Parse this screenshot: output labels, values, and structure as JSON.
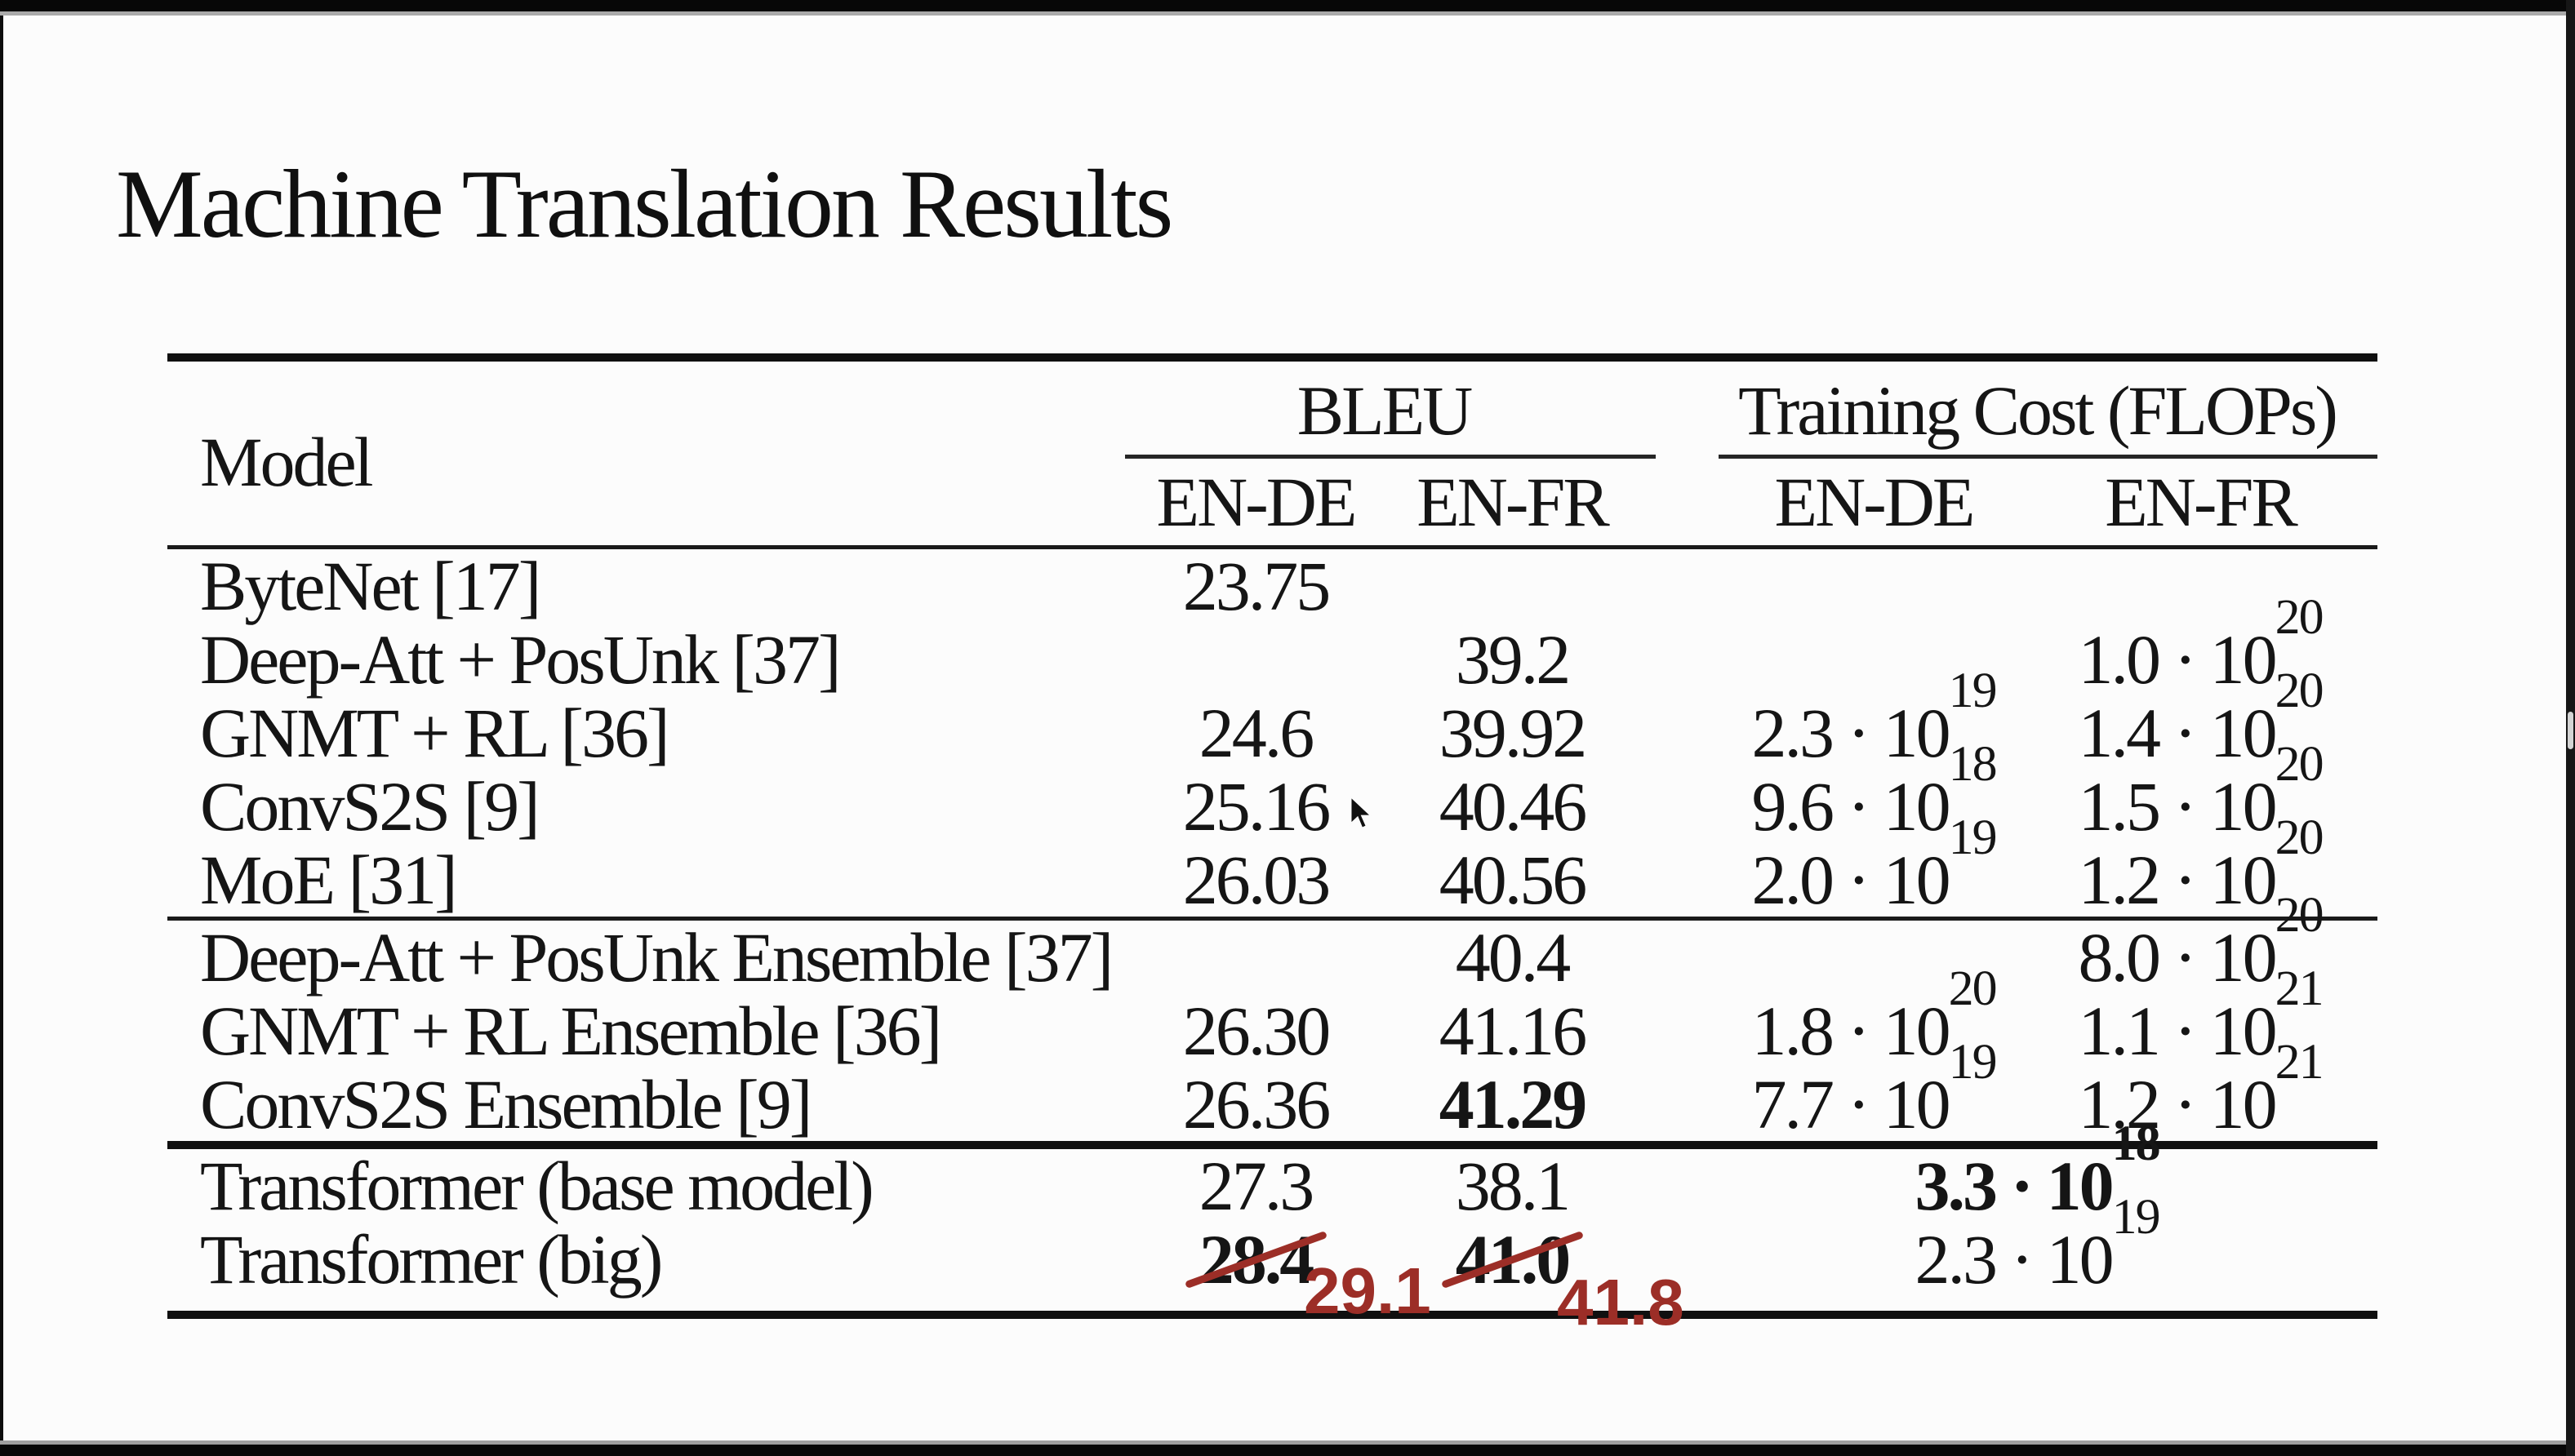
{
  "slide": {
    "title": "Machine Translation Results"
  },
  "table": {
    "header": {
      "model_col": "Model",
      "groups": [
        {
          "label": "BLEU",
          "subcols": [
            "EN-DE",
            "EN-FR"
          ]
        },
        {
          "label": "Training Cost (FLOPs)",
          "subcols": [
            "EN-DE",
            "EN-FR"
          ]
        }
      ]
    },
    "groups": [
      {
        "rows": [
          {
            "model": "ByteNet [17]",
            "bleu_ende": "23.75"
          },
          {
            "model": "Deep-Att + PosUnk [37]",
            "bleu_enfr": "39.2",
            "cost_enfr": "1.0 · 10^20"
          },
          {
            "model": "GNMT + RL [36]",
            "bleu_ende": "24.6",
            "bleu_enfr": "39.92",
            "cost_ende": "2.3 · 10^19",
            "cost_enfr": "1.4 · 10^20"
          },
          {
            "model": "ConvS2S [9]",
            "bleu_ende": "25.16",
            "bleu_enfr": "40.46",
            "cost_ende": "9.6 · 10^18",
            "cost_enfr": "1.5 · 10^20"
          },
          {
            "model": "MoE [31]",
            "bleu_ende": "26.03",
            "bleu_enfr": "40.56",
            "cost_ende": "2.0 · 10^19",
            "cost_enfr": "1.2 · 10^20"
          }
        ]
      },
      {
        "rows": [
          {
            "model": "Deep-Att + PosUnk Ensemble [37]",
            "bleu_enfr": "40.4",
            "cost_enfr": "8.0 · 10^20"
          },
          {
            "model": "GNMT + RL Ensemble [36]",
            "bleu_ende": "26.30",
            "bleu_enfr": "41.16",
            "cost_ende": "1.8 · 10^20",
            "cost_enfr": "1.1 · 10^21"
          },
          {
            "model": "ConvS2S Ensemble [9]",
            "bleu_ende": "26.36",
            "bleu_enfr": "41.29",
            "bleu_enfr_bold": true,
            "cost_ende": "7.7 · 10^19",
            "cost_enfr": "1.2 · 10^21"
          }
        ]
      },
      {
        "rows": [
          {
            "model": "Transformer (base model)",
            "bleu_ende": "27.3",
            "bleu_enfr": "38.1",
            "cost_merged": "3.3 · 10^18",
            "cost_merged_bold": true
          },
          {
            "model": "Transformer (big)",
            "bleu_ende": "28.4",
            "bleu_ende_bold": true,
            "bleu_ende_struck": true,
            "bleu_enfr": "41.0",
            "bleu_enfr_bold": true,
            "bleu_enfr_struck": true,
            "cost_merged": "2.3 · 10^19"
          }
        ]
      }
    ]
  },
  "annotations": {
    "en_de_corrected": "29.1",
    "en_fr_corrected": "41.8",
    "color": "#9c2e27"
  },
  "cursor": {
    "icon": "arrow-pointer"
  },
  "colors": {
    "text": "#151515",
    "rule": "#101010",
    "annotation_red": "#9c2e27",
    "scrollbar_thumb": "#d4d4d4"
  }
}
